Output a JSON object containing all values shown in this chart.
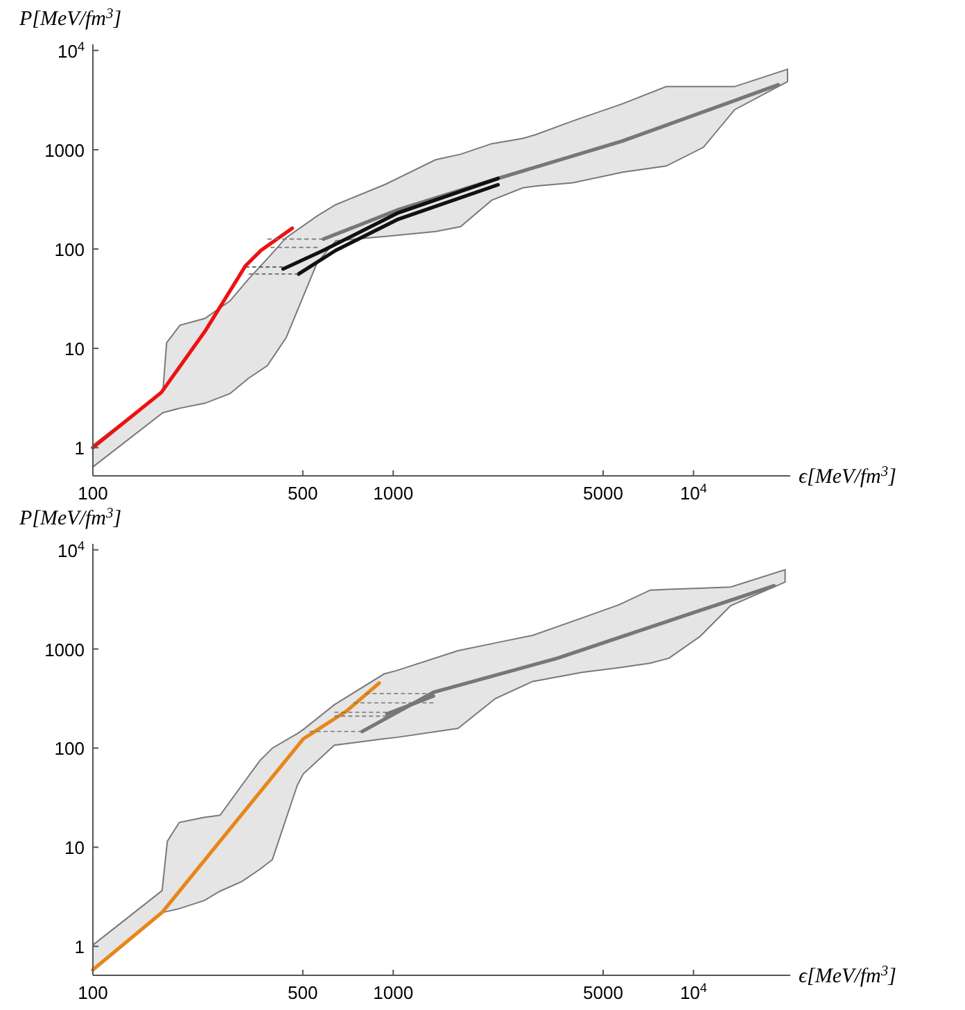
{
  "chart_data": [
    {
      "type": "line",
      "xlabel": "ϵ[MeV/fm$^{3}$]",
      "ylabel": "P[MeV/fm$^{3}$]",
      "log": "xy",
      "grid": false,
      "xlim": [
        100,
        21000
      ],
      "ylim": [
        0.52,
        11500
      ],
      "xticks": [
        100,
        500,
        1000,
        5000,
        {
          "value": 10000,
          "label": "10$^{4}$"
        }
      ],
      "yticks": [
        1,
        10,
        100,
        1000,
        {
          "value": 10000,
          "label": "10$^{4}$"
        }
      ],
      "series": [
        {
          "type": "area",
          "color": "#e5e5e5",
          "x": [
            100,
            171,
            176,
            195,
            236,
            286,
            330,
            381,
            440,
            558,
            644,
            944,
            1384,
            1675,
            2128,
            2704,
            2974,
            3963,
            5800,
            8110,
            10790,
            13700,
            20560
          ],
          "values": [
            null,
            null,
            null,
            null,
            null,
            null,
            null,
            null,
            null,
            null,
            null,
            null,
            null,
            null,
            null,
            null,
            null,
            null,
            null,
            null,
            null,
            null,
            null
          ],
          "upper": [
            1.06,
            3.7,
            11.4,
            17.1,
            20,
            30,
            50,
            80,
            130,
            215,
            280,
            450,
            793,
            900,
            1150,
            1300,
            1416,
            1950,
            2900,
            4320,
            4320,
            4320,
            6470
          ],
          "lower": [
            0.64,
            2.25,
            2.3,
            2.5,
            2.8,
            3.5,
            5.0,
            6.7,
            12.8,
            72.8,
            121,
            134,
            150,
            168,
            310,
            413,
            430,
            464,
            594,
            686,
            1059,
            2529,
            4853
          ]
        },
        {
          "type": "line",
          "line_style": "dashed",
          "color": "#777777",
          "x": [
            381,
            586
          ],
          "values": [
            126,
            126
          ]
        },
        {
          "type": "line",
          "line_style": "dashed",
          "color": "#777777",
          "x": [
            390,
            560
          ],
          "values": [
            104,
            104
          ]
        },
        {
          "type": "line",
          "line_style": "dashed",
          "color": "#555555",
          "x": [
            322,
            430
          ],
          "values": [
            66,
            66
          ]
        },
        {
          "type": "line",
          "line_style": "dashed",
          "color": "#555555",
          "x": [
            330,
            484
          ],
          "values": [
            56,
            56
          ]
        },
        {
          "type": "line",
          "line_style": "solid",
          "color": "#777777",
          "x": [
            586,
            1040,
            2233,
            5800,
            19140
          ],
          "values": [
            126,
            249,
            514,
            1225,
            4508
          ]
        },
        {
          "type": "line",
          "line_style": "solid",
          "color": "#111111",
          "x": [
            430,
            586,
            1040,
            2233
          ],
          "values": [
            63,
            97,
            232,
            514
          ]
        },
        {
          "type": "line",
          "line_style": "solid",
          "color": "#111111",
          "x": [
            484,
            644,
            1040,
            2233
          ],
          "values": [
            56,
            97,
            200,
            444
          ]
        },
        {
          "line_style": "solid",
          "color": "#ee1111",
          "x": [
            100,
            169,
            236,
            322,
            363,
            461
          ],
          "values": [
            1,
            3.6,
            14.8,
            67.7,
            97,
            162
          ]
        }
      ]
    },
    {
      "type": "line",
      "xlabel": "ϵ[MeV/fm$^{3}$]",
      "ylabel": "P[MeV/fm$^{3}$]",
      "log": "xy",
      "grid": false,
      "xlim": [
        100,
        21000
      ],
      "ylim": [
        0.51,
        11500
      ],
      "xticks": [
        100,
        500,
        1000,
        5000,
        {
          "value": 10000,
          "label": "10$^{4}$"
        }
      ],
      "yticks": [
        1,
        10,
        100,
        1000,
        {
          "value": 10000,
          "label": "10$^{4}$"
        }
      ],
      "series": [
        {
          "type": "area",
          "color": "#e5e5e5",
          "x": [
            100,
            170,
            177,
            194,
            235,
            265,
            313,
            360,
            396,
            479,
            502,
            637,
            932,
            1023,
            1644,
            2188,
            2911,
            4252,
            5660,
            7180,
            8280,
            10500,
            13300,
            20180
          ],
          "values": [
            null,
            null,
            null,
            null,
            null,
            null,
            null,
            null,
            null,
            null,
            null,
            null,
            null,
            null,
            null,
            null,
            null,
            null,
            null,
            null,
            null,
            null,
            null,
            null
          ],
          "upper": [
            1.03,
            3.65,
            11.5,
            17.8,
            20,
            21,
            42,
            75,
            100,
            140,
            154,
            274,
            560,
            604,
            960,
            1150,
            1372,
            2053,
            2800,
            3925,
            4000,
            4100,
            4217,
            6310
          ],
          "lower": [
            0.58,
            2.2,
            2.25,
            2.4,
            2.9,
            3.6,
            4.5,
            6.0,
            7.5,
            42,
            55,
            107,
            124,
            128,
            158,
            316,
            470,
            580,
            649,
            720,
            806,
            1334,
            2738,
            4732
          ]
        },
        {
          "type": "line",
          "line_style": "dashed",
          "color": "#777777",
          "x": [
            808,
            1361
          ],
          "values": [
            355,
            355
          ]
        },
        {
          "type": "line",
          "line_style": "dashed",
          "color": "#777777",
          "x": [
            738,
            1361
          ],
          "values": [
            286,
            286
          ]
        },
        {
          "type": "line",
          "line_style": "dashed",
          "color": "#777777",
          "x": [
            637,
            953
          ],
          "values": [
            230,
            230
          ]
        },
        {
          "type": "line",
          "line_style": "dashed",
          "color": "#777777",
          "x": [
            637,
            953
          ],
          "values": [
            210,
            210
          ]
        },
        {
          "type": "line",
          "line_style": "dashed",
          "color": "#777777",
          "x": [
            527,
            788
          ],
          "values": [
            147,
            147
          ]
        },
        {
          "type": "line",
          "line_style": "solid",
          "color": "#777777",
          "x": [
            788,
            1361,
            3513,
            18530
          ],
          "values": [
            147,
            365,
            806,
            4341
          ]
        },
        {
          "type": "line",
          "line_style": "solid",
          "color": "#777777",
          "x": [
            953,
            1361
          ],
          "values": [
            221,
            335
          ]
        },
        {
          "line_style": "solid",
          "color": "#e8861a",
          "x": [
            100,
            170,
            502,
            700,
            898
          ],
          "values": [
            0.58,
            2.2,
            124,
            237,
            453
          ]
        }
      ]
    }
  ]
}
